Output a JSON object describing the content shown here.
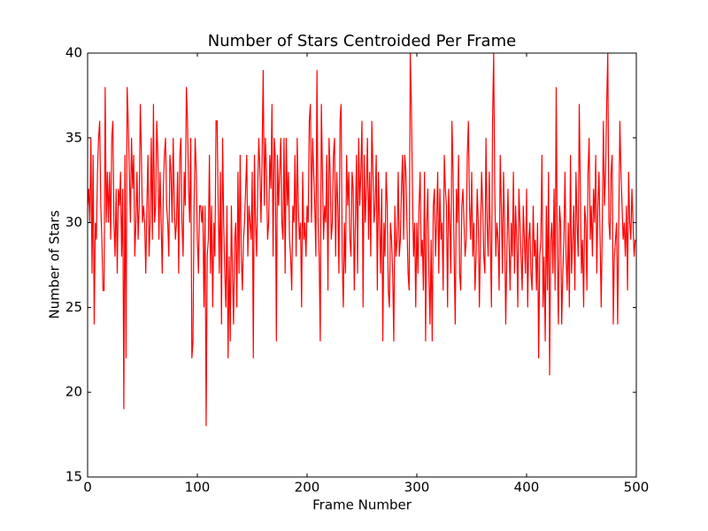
{
  "chart_data": {
    "type": "line",
    "title": "Number of Stars Centroided Per Frame",
    "x_label": "Frame Number",
    "y_label": "Number of Stars",
    "xlim": [
      0,
      500
    ],
    "xticks": [
      0,
      100,
      200,
      300,
      400,
      500
    ],
    "ylim": [
      15,
      40
    ],
    "yticks": [
      15,
      20,
      25,
      30,
      35,
      40
    ],
    "grid": false,
    "series": [
      {
        "color": "#ff0000",
        "values": [
          31,
          32,
          30,
          35,
          27,
          34,
          24,
          30,
          29,
          33,
          35,
          36,
          31,
          29,
          26,
          26,
          38,
          30,
          33,
          30,
          33,
          29,
          35,
          36,
          30,
          28,
          32,
          27,
          32,
          31,
          33,
          28,
          32,
          19,
          34,
          22,
          38,
          36,
          33,
          30,
          35,
          32,
          34,
          28,
          30,
          33,
          29,
          31,
          37,
          34,
          30,
          31,
          30,
          27,
          31,
          34,
          28,
          30,
          35,
          29,
          37,
          30,
          31,
          36,
          34,
          29,
          33,
          30,
          27,
          32,
          34,
          35,
          31,
          30,
          28,
          34,
          33,
          30,
          35,
          31,
          29,
          30,
          33,
          27,
          34,
          35,
          30,
          28,
          33,
          31,
          38,
          36,
          32,
          30,
          35,
          22,
          23,
          31,
          35,
          33,
          29,
          27,
          31,
          31,
          30,
          31,
          25,
          31,
          18,
          28,
          29,
          34,
          27,
          31,
          25,
          30,
          28,
          36,
          36,
          31,
          27,
          33,
          24,
          35,
          30,
          27,
          25,
          31,
          22,
          28,
          23,
          31,
          27,
          24,
          29,
          30,
          25,
          33,
          27,
          34,
          28,
          26,
          29,
          30,
          32,
          34,
          28,
          31,
          30,
          29,
          33,
          22,
          34,
          30,
          28,
          32,
          35,
          33,
          30,
          34,
          39,
          31,
          35,
          33,
          29,
          30,
          34,
          32,
          37,
          28,
          35,
          34,
          23,
          34,
          31,
          33,
          35,
          30,
          29,
          35,
          27,
          35,
          31,
          33,
          29,
          28,
          26,
          31,
          30,
          34,
          28,
          35,
          31,
          29,
          30,
          25,
          33,
          29,
          30,
          28,
          31,
          30,
          36,
          37,
          30,
          35,
          33,
          31,
          28,
          39,
          30,
          28,
          23,
          37,
          33,
          29,
          31,
          30,
          34,
          26,
          35,
          33,
          29,
          30,
          34,
          35,
          28,
          33,
          31,
          27,
          36,
          37,
          28,
          25,
          30,
          27,
          34,
          31,
          33,
          29,
          28,
          33,
          32,
          26,
          30,
          34,
          27,
          35,
          31,
          33,
          36,
          25,
          34,
          30,
          32,
          35,
          29,
          33,
          28,
          36,
          33,
          30,
          31,
          34,
          26,
          33,
          30,
          27,
          32,
          23,
          30,
          28,
          33,
          31,
          26,
          25,
          30,
          29,
          27,
          23,
          31,
          28,
          29,
          33,
          28,
          29,
          32,
          34,
          29,
          34,
          33,
          30,
          27,
          26,
          40,
          37,
          32,
          28,
          30,
          25,
          30,
          27,
          31,
          33,
          28,
          29,
          26,
          33,
          23,
          30,
          32,
          27,
          24,
          29,
          23,
          31,
          32,
          28,
          30,
          33,
          27,
          32,
          29,
          30,
          26,
          34,
          32,
          31,
          25,
          32,
          30,
          27,
          36,
          33,
          28,
          24,
          32,
          30,
          34,
          27,
          26,
          31,
          32,
          30,
          28,
          29,
          34,
          36,
          31,
          29,
          33,
          28,
          30,
          26,
          28,
          32,
          30,
          25,
          29,
          33,
          31,
          28,
          27,
          35,
          30,
          28,
          33,
          29,
          25,
          36,
          40,
          32,
          28,
          30,
          29,
          26,
          34,
          31,
          27,
          33,
          30,
          24,
          28,
          32,
          29,
          26,
          30,
          28,
          33,
          27,
          31,
          29,
          25,
          32,
          30,
          28,
          26,
          31,
          29,
          27,
          32,
          25,
          29,
          30,
          27,
          26,
          31,
          28,
          29,
          26,
          30,
          22,
          28,
          29,
          34,
          25,
          28,
          23,
          31,
          26,
          33,
          21,
          29,
          30,
          27,
          32,
          26,
          38,
          28,
          24,
          31,
          30,
          24,
          27,
          29,
          33,
          28,
          26,
          30,
          25,
          34,
          27,
          29,
          31,
          26,
          33,
          30,
          28,
          37,
          32,
          27,
          29,
          25,
          31,
          30,
          26,
          33,
          35,
          29,
          31,
          28,
          32,
          30,
          34,
          27,
          31,
          33,
          29,
          25,
          30,
          36,
          31,
          33,
          37,
          40,
          30,
          29,
          33,
          34,
          24,
          28,
          29,
          30,
          24,
          30,
          36,
          33,
          31,
          29,
          30,
          28,
          31,
          26,
          33,
          30,
          29,
          32,
          30,
          28,
          29
        ]
      }
    ]
  }
}
